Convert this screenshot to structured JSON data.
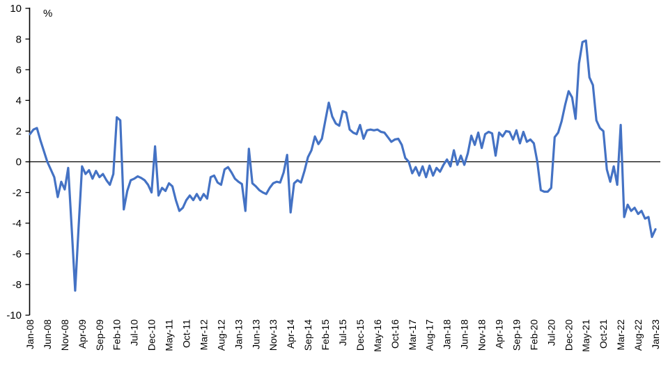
{
  "chart_data": {
    "type": "line",
    "title": "",
    "unit_label": "%",
    "x_start": "Jan-08",
    "x_end": "Jan-23",
    "frequency": "monthly",
    "x_tick_interval_months": 5,
    "x_tick_labels": [
      "Jan-08",
      "Jun-08",
      "Nov-08",
      "Apr-09",
      "Sep-09",
      "Feb-10",
      "Jul-10",
      "Dec-10",
      "May-11",
      "Oct-11",
      "Mar-12",
      "Aug-12",
      "Jan-13",
      "Jun-13",
      "Nov-13",
      "Apr-14",
      "Sep-14",
      "Feb-15",
      "Jul-15",
      "Dec-15",
      "May-16",
      "Oct-16",
      "Mar-17",
      "Aug-17",
      "Jan-18",
      "Jun-18",
      "Nov-18",
      "Apr-19",
      "Sep-19",
      "Feb-20",
      "Jul-20",
      "Dec-20",
      "May-21",
      "Oct-21",
      "Mar-22",
      "Aug-22",
      "Jan-23"
    ],
    "y_ticks": [
      10,
      8,
      6,
      4,
      2,
      0,
      -2,
      -4,
      -6,
      -8,
      -10
    ],
    "ylim": [
      -10,
      10
    ],
    "grid": "zero-line-only",
    "legend": "none",
    "line_color": "#4472C4",
    "axis_color": "#000000",
    "background_color": "#FFFFFF",
    "values": [
      1.8,
      2.1,
      2.2,
      1.4,
      0.7,
      0.0,
      -0.5,
      -1.0,
      -2.3,
      -1.3,
      -1.8,
      -0.4,
      -4.3,
      -8.4,
      -4.3,
      -0.3,
      -0.8,
      -0.55,
      -1.1,
      -0.6,
      -1.0,
      -0.8,
      -1.2,
      -1.5,
      -0.8,
      2.9,
      2.7,
      -3.1,
      -1.9,
      -1.2,
      -1.1,
      -0.95,
      -1.05,
      -1.2,
      -1.5,
      -2.0,
      1.0,
      -2.2,
      -1.7,
      -1.9,
      -1.4,
      -1.6,
      -2.5,
      -3.2,
      -3.0,
      -2.5,
      -2.2,
      -2.5,
      -2.1,
      -2.5,
      -2.1,
      -2.4,
      -1.0,
      -0.9,
      -1.35,
      -1.5,
      -0.5,
      -0.35,
      -0.7,
      -1.1,
      -1.3,
      -1.45,
      -3.2,
      0.85,
      -1.4,
      -1.6,
      -1.85,
      -2.0,
      -2.1,
      -1.7,
      -1.4,
      -1.3,
      -1.35,
      -0.7,
      0.45,
      -3.3,
      -1.4,
      -1.2,
      -1.35,
      -0.6,
      0.3,
      0.75,
      1.65,
      1.15,
      1.5,
      2.7,
      3.85,
      2.95,
      2.5,
      2.35,
      3.3,
      3.2,
      2.1,
      1.9,
      1.8,
      2.4,
      1.5,
      2.05,
      2.1,
      2.05,
      2.1,
      1.95,
      1.9,
      1.6,
      1.3,
      1.45,
      1.5,
      1.1,
      0.25,
      0.0,
      -0.75,
      -0.35,
      -0.9,
      -0.3,
      -1.0,
      -0.25,
      -0.9,
      -0.4,
      -0.65,
      -0.2,
      0.15,
      -0.3,
      0.75,
      -0.2,
      0.4,
      -0.2,
      0.55,
      1.7,
      1.1,
      1.9,
      0.9,
      1.8,
      1.95,
      1.85,
      0.4,
      1.9,
      1.65,
      2.0,
      1.95,
      1.45,
      2.05,
      1.2,
      1.95,
      1.3,
      1.45,
      1.2,
      0.0,
      -1.85,
      -1.95,
      -1.95,
      -1.7,
      1.6,
      1.9,
      2.65,
      3.7,
      4.6,
      4.2,
      2.8,
      6.4,
      7.8,
      7.9,
      5.5,
      5.0,
      2.7,
      2.2,
      2.0,
      -0.5,
      -1.3,
      -0.3,
      -1.5,
      2.4,
      -3.6,
      -2.8,
      -3.2,
      -3.0,
      -3.4,
      -3.2,
      -3.7,
      -3.6,
      -4.9,
      -4.4
    ]
  }
}
